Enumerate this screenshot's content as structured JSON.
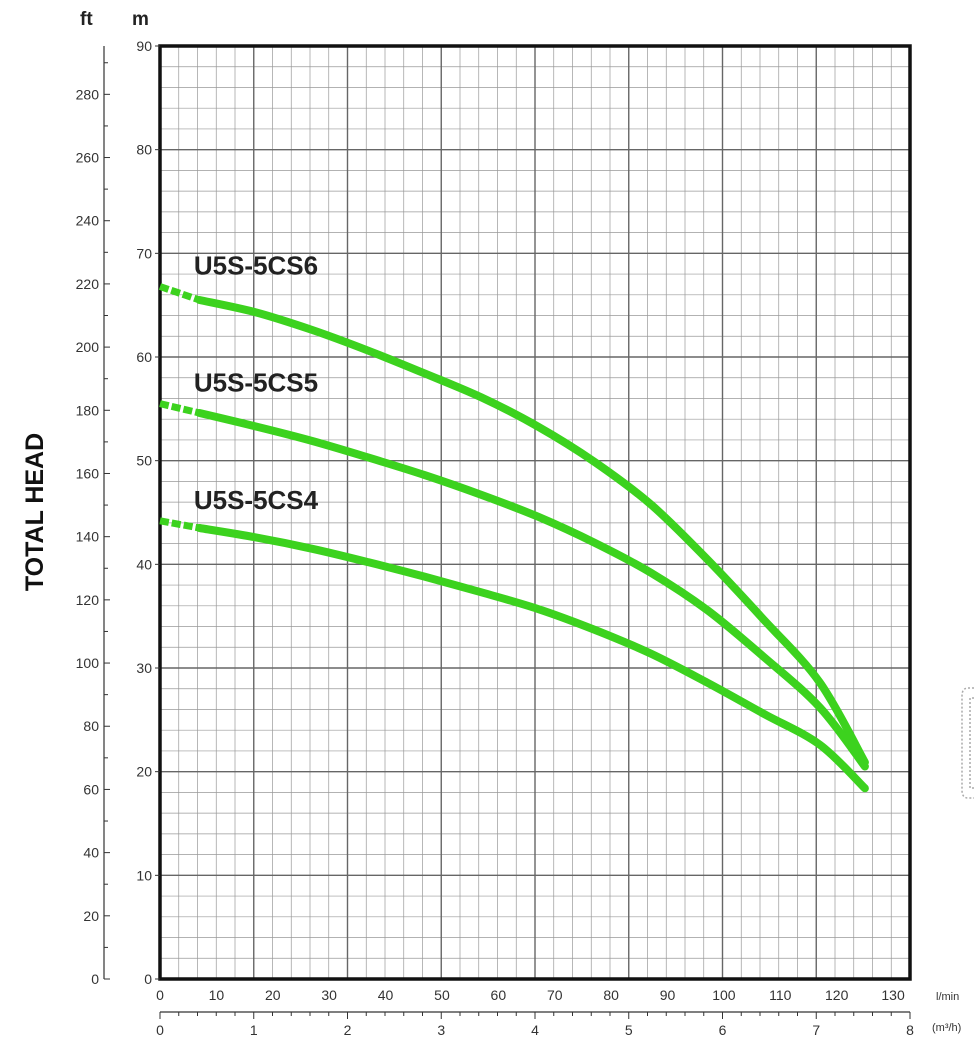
{
  "chart_data": {
    "type": "line",
    "ylabel": "TOTAL HEAD",
    "y_unit_left": "ft",
    "y_unit_right": "m",
    "x_unit_primary": "l/min",
    "x_unit_secondary": "(m³/h)",
    "xlim": [
      0,
      133
    ],
    "ylim": [
      0,
      90
    ],
    "ylim_ft": [
      0,
      295.3
    ],
    "x2lim": [
      0,
      8
    ],
    "x_ticks": [
      0,
      10,
      20,
      30,
      40,
      50,
      60,
      70,
      80,
      90,
      100,
      110,
      120,
      130
    ],
    "y_ticks": [
      0,
      10,
      20,
      30,
      40,
      50,
      60,
      70,
      80,
      90
    ],
    "y_ft_ticks": [
      0,
      20,
      40,
      60,
      80,
      100,
      120,
      140,
      160,
      180,
      200,
      220,
      240,
      260,
      280
    ],
    "x2_ticks": [
      0,
      1,
      2,
      3,
      4,
      5,
      6,
      7,
      8
    ],
    "grid": true,
    "line_color": "#3cd21e",
    "series": [
      {
        "name": "U5S-5CS6",
        "dashed_until_x": 7,
        "x": [
          0,
          7,
          17,
          27,
          37,
          47,
          57,
          67,
          77,
          87,
          97,
          107,
          117,
          125
        ],
        "y": [
          66.8,
          65.5,
          64.3,
          62.6,
          60.6,
          58.4,
          56.1,
          53.3,
          49.9,
          45.8,
          40.5,
          34.7,
          28.6,
          20.9
        ]
      },
      {
        "name": "U5S-5CS5",
        "dashed_until_x": 7,
        "x": [
          0,
          7,
          17,
          27,
          37,
          47,
          57,
          67,
          77,
          87,
          97,
          107,
          117,
          125
        ],
        "y": [
          55.5,
          54.6,
          53.3,
          51.9,
          50.3,
          48.6,
          46.7,
          44.6,
          42.1,
          39.2,
          35.6,
          31.1,
          26.2,
          20.5
        ]
      },
      {
        "name": "U5S-5CS4",
        "dashed_until_x": 7,
        "x": [
          0,
          7,
          17,
          27,
          37,
          47,
          57,
          67,
          77,
          87,
          97,
          107,
          117,
          125
        ],
        "y": [
          44.2,
          43.5,
          42.6,
          41.5,
          40.2,
          38.8,
          37.3,
          35.7,
          33.7,
          31.4,
          28.6,
          25.6,
          22.6,
          18.4
        ]
      }
    ]
  }
}
